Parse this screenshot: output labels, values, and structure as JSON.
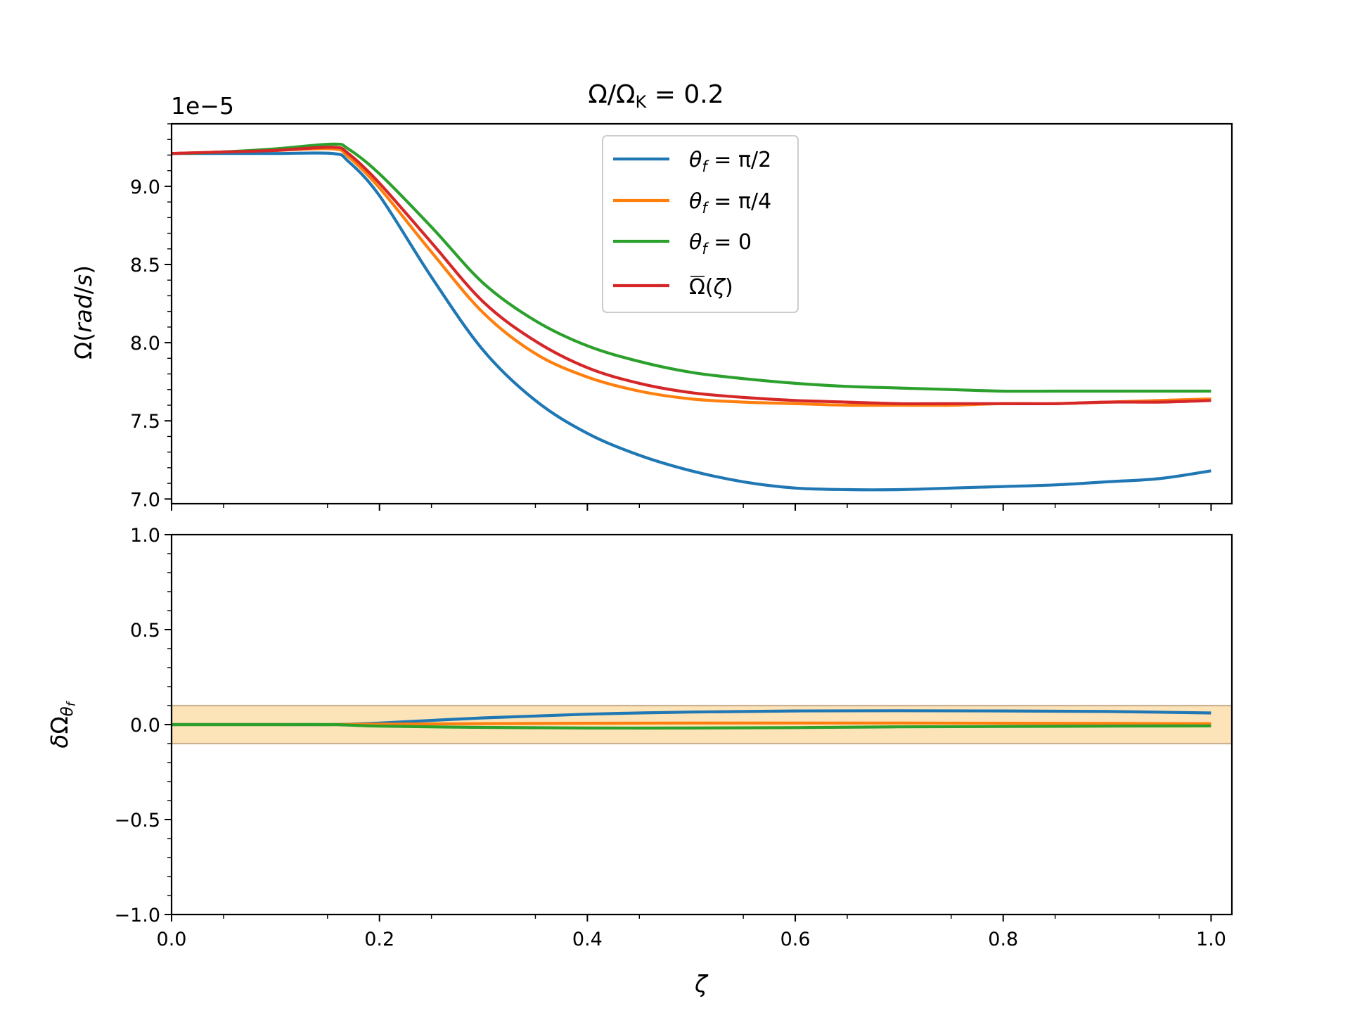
{
  "chart_data": [
    {
      "type": "line",
      "title": "Ω/Ω_K = 0.2",
      "ylabel": "Ω(rad/s)",
      "offset_text": "1e−5",
      "xlim": [
        0.0,
        1.02
      ],
      "ylim": [
        6.97,
        9.4
      ],
      "yticks": [
        7.0,
        7.5,
        8.0,
        8.5,
        9.0
      ],
      "ytick_labels": [
        "7.0",
        "7.5",
        "8.0",
        "8.5",
        "9.0"
      ],
      "legend": {
        "location": "upper center"
      },
      "series": [
        {
          "name": "θ_f = π/2",
          "color": "#1f77b4",
          "x": [
            0.0,
            0.05,
            0.1,
            0.155,
            0.17,
            0.2,
            0.25,
            0.3,
            0.35,
            0.4,
            0.45,
            0.5,
            0.55,
            0.6,
            0.65,
            0.7,
            0.75,
            0.8,
            0.85,
            0.9,
            0.95,
            1.0
          ],
          "y": [
            9.21,
            9.21,
            9.21,
            9.21,
            9.16,
            8.94,
            8.42,
            7.95,
            7.63,
            7.42,
            7.28,
            7.18,
            7.11,
            7.07,
            7.06,
            7.06,
            7.07,
            7.08,
            7.09,
            7.11,
            7.13,
            7.18
          ]
        },
        {
          "name": "θ_f = π/4",
          "color": "#ff7f0e",
          "x": [
            0.0,
            0.05,
            0.1,
            0.155,
            0.17,
            0.2,
            0.25,
            0.3,
            0.35,
            0.4,
            0.45,
            0.5,
            0.55,
            0.6,
            0.65,
            0.7,
            0.75,
            0.8,
            0.85,
            0.9,
            0.95,
            1.0
          ],
          "y": [
            9.21,
            9.22,
            9.23,
            9.24,
            9.19,
            8.99,
            8.58,
            8.19,
            7.93,
            7.78,
            7.69,
            7.64,
            7.62,
            7.61,
            7.6,
            7.6,
            7.6,
            7.61,
            7.61,
            7.62,
            7.63,
            7.64
          ]
        },
        {
          "name": "θ_f = 0",
          "color": "#2ca02c",
          "x": [
            0.0,
            0.05,
            0.1,
            0.155,
            0.17,
            0.2,
            0.25,
            0.3,
            0.35,
            0.4,
            0.45,
            0.5,
            0.55,
            0.6,
            0.65,
            0.7,
            0.75,
            0.8,
            0.85,
            0.9,
            0.95,
            1.0
          ],
          "y": [
            9.21,
            9.22,
            9.24,
            9.27,
            9.24,
            9.08,
            8.74,
            8.38,
            8.14,
            7.98,
            7.88,
            7.81,
            7.77,
            7.74,
            7.72,
            7.71,
            7.7,
            7.69,
            7.69,
            7.69,
            7.69,
            7.69
          ]
        },
        {
          "name": "Ω̄(ζ)",
          "color": "#d62728",
          "x": [
            0.0,
            0.05,
            0.1,
            0.155,
            0.17,
            0.2,
            0.25,
            0.3,
            0.35,
            0.4,
            0.45,
            0.5,
            0.55,
            0.6,
            0.65,
            0.7,
            0.75,
            0.8,
            0.85,
            0.9,
            0.95,
            1.0
          ],
          "y": [
            9.21,
            9.22,
            9.23,
            9.25,
            9.21,
            9.02,
            8.64,
            8.26,
            8.01,
            7.84,
            7.74,
            7.68,
            7.65,
            7.63,
            7.62,
            7.61,
            7.61,
            7.61,
            7.61,
            7.62,
            7.62,
            7.63
          ]
        }
      ]
    },
    {
      "type": "line",
      "xlabel": "ζ",
      "ylabel": "δΩ_θf",
      "xlim": [
        0.0,
        1.02
      ],
      "ylim": [
        -1.0,
        1.0
      ],
      "xticks": [
        0.0,
        0.2,
        0.4,
        0.6,
        0.8,
        1.0
      ],
      "xtick_labels": [
        "0.0",
        "0.2",
        "0.4",
        "0.6",
        "0.8",
        "1.0"
      ],
      "yticks": [
        -1.0,
        -0.5,
        0.0,
        0.5,
        1.0
      ],
      "ytick_labels": [
        "−1.0",
        "−0.5",
        "0.0",
        "0.5",
        "1.0"
      ],
      "band": {
        "y0": -0.1,
        "y1": 0.1,
        "fill": "#fde4b8",
        "edge": "#c9b193"
      },
      "series": [
        {
          "color": "#1f77b4",
          "x": [
            0.0,
            0.1,
            0.155,
            0.2,
            0.3,
            0.4,
            0.5,
            0.6,
            0.7,
            0.8,
            0.9,
            1.0
          ],
          "y": [
            0.0,
            0.0,
            0.0,
            0.008,
            0.035,
            0.055,
            0.066,
            0.072,
            0.073,
            0.072,
            0.069,
            0.061
          ]
        },
        {
          "color": "#ff7f0e",
          "x": [
            0.0,
            0.1,
            0.155,
            0.2,
            0.3,
            0.4,
            0.5,
            0.6,
            0.7,
            0.8,
            0.9,
            1.0
          ],
          "y": [
            0.0,
            0.0,
            0.0,
            0.002,
            0.005,
            0.007,
            0.008,
            0.008,
            0.008,
            0.007,
            0.006,
            0.005
          ]
        },
        {
          "color": "#2ca02c",
          "x": [
            0.0,
            0.1,
            0.155,
            0.2,
            0.3,
            0.4,
            0.5,
            0.6,
            0.7,
            0.8,
            0.9,
            1.0
          ],
          "y": [
            0.0,
            0.0,
            0.0,
            -0.008,
            -0.015,
            -0.018,
            -0.018,
            -0.016,
            -0.012,
            -0.01,
            -0.008,
            -0.007
          ]
        }
      ]
    }
  ]
}
